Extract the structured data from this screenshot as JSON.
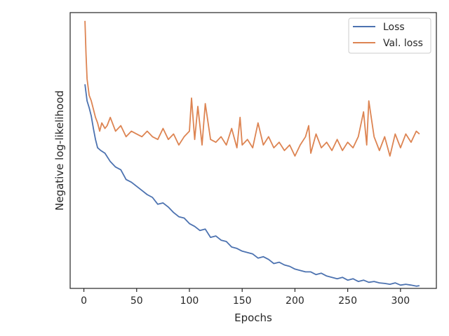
{
  "chart_data": {
    "type": "line",
    "title": "",
    "xlabel": "Epochs",
    "ylabel": "Negative log-likelihood",
    "xlim": [
      -13,
      334
    ],
    "ylim": [
      0,
      1
    ],
    "xticks": [
      0,
      50,
      100,
      150,
      200,
      250,
      300
    ],
    "show_y_tick_labels": false,
    "grid": false,
    "legend_position": "top-right",
    "series": [
      {
        "name": "Loss",
        "color": "#4c72b0",
        "x": [
          1,
          3,
          5,
          7,
          9,
          11,
          13,
          16,
          20,
          25,
          30,
          35,
          40,
          45,
          50,
          55,
          60,
          65,
          70,
          75,
          80,
          85,
          90,
          95,
          100,
          105,
          110,
          115,
          120,
          125,
          130,
          135,
          140,
          145,
          150,
          155,
          160,
          165,
          170,
          175,
          180,
          185,
          190,
          195,
          200,
          205,
          210,
          215,
          220,
          225,
          230,
          235,
          240,
          245,
          250,
          255,
          260,
          265,
          270,
          275,
          280,
          285,
          290,
          295,
          300,
          305,
          310,
          315,
          318
        ],
        "values": [
          0.74,
          0.68,
          0.655,
          0.625,
          0.58,
          0.54,
          0.51,
          0.5,
          0.49,
          0.46,
          0.44,
          0.43,
          0.395,
          0.385,
          0.37,
          0.355,
          0.34,
          0.33,
          0.305,
          0.31,
          0.295,
          0.275,
          0.26,
          0.255,
          0.235,
          0.225,
          0.21,
          0.215,
          0.185,
          0.19,
          0.175,
          0.17,
          0.15,
          0.145,
          0.135,
          0.13,
          0.125,
          0.11,
          0.115,
          0.105,
          0.09,
          0.095,
          0.085,
          0.08,
          0.07,
          0.065,
          0.06,
          0.06,
          0.05,
          0.055,
          0.045,
          0.04,
          0.035,
          0.04,
          0.03,
          0.035,
          0.025,
          0.03,
          0.022,
          0.025,
          0.02,
          0.018,
          0.015,
          0.02,
          0.012,
          0.015,
          0.012,
          0.008,
          0.01
        ]
      },
      {
        "name": "Val. loss",
        "color": "#dd8452",
        "x": [
          1,
          2,
          3,
          5,
          7,
          9,
          11,
          13,
          15,
          17,
          20,
          22,
          25,
          30,
          35,
          40,
          45,
          50,
          55,
          60,
          65,
          70,
          75,
          80,
          85,
          90,
          95,
          100,
          102,
          105,
          108,
          112,
          115,
          120,
          125,
          130,
          135,
          140,
          145,
          148,
          150,
          155,
          160,
          165,
          170,
          175,
          180,
          185,
          190,
          195,
          200,
          205,
          210,
          213,
          215,
          220,
          225,
          230,
          235,
          240,
          245,
          250,
          255,
          260,
          265,
          268,
          270,
          275,
          280,
          285,
          290,
          295,
          300,
          305,
          310,
          315,
          318
        ],
        "values": [
          0.97,
          0.85,
          0.76,
          0.7,
          0.68,
          0.65,
          0.62,
          0.6,
          0.57,
          0.6,
          0.58,
          0.59,
          0.62,
          0.57,
          0.59,
          0.55,
          0.57,
          0.56,
          0.55,
          0.57,
          0.55,
          0.54,
          0.58,
          0.54,
          0.56,
          0.52,
          0.55,
          0.57,
          0.69,
          0.54,
          0.66,
          0.52,
          0.67,
          0.54,
          0.53,
          0.55,
          0.52,
          0.58,
          0.51,
          0.62,
          0.52,
          0.54,
          0.51,
          0.6,
          0.52,
          0.55,
          0.51,
          0.53,
          0.5,
          0.52,
          0.48,
          0.52,
          0.55,
          0.59,
          0.49,
          0.56,
          0.51,
          0.53,
          0.5,
          0.54,
          0.5,
          0.53,
          0.51,
          0.55,
          0.64,
          0.52,
          0.68,
          0.55,
          0.5,
          0.55,
          0.48,
          0.56,
          0.51,
          0.56,
          0.53,
          0.57,
          0.56
        ]
      }
    ]
  }
}
